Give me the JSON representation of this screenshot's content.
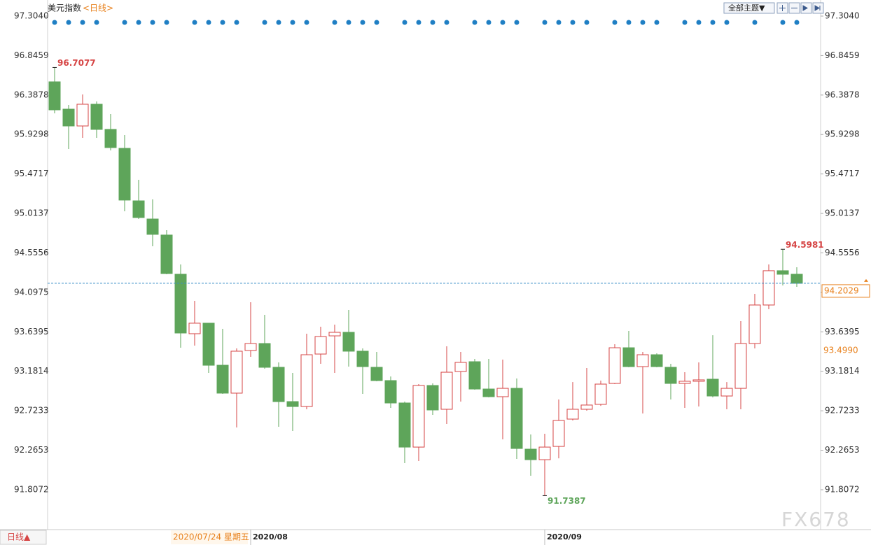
{
  "chart_data": {
    "type": "candlestick",
    "title": "美元指数",
    "subtitle": "<日线>",
    "categories": [
      null,
      null,
      null,
      null,
      null,
      null,
      null,
      null,
      null,
      null,
      null,
      null,
      null,
      null,
      "2020/08",
      null,
      null,
      null,
      null,
      null,
      null,
      null,
      null,
      null,
      null,
      null,
      null,
      null,
      null,
      null,
      null,
      null,
      null,
      null,
      null,
      "2020/09",
      null,
      null,
      null,
      null,
      null,
      null,
      null,
      null,
      null,
      null,
      null,
      null,
      null,
      null,
      null,
      null,
      null,
      null
    ],
    "open": [
      96.541,
      96.224,
      96.029,
      96.281,
      95.989,
      95.769,
      95.16,
      94.949,
      94.763,
      94.308,
      93.618,
      93.74,
      93.252,
      92.928,
      93.423,
      93.504,
      93.228,
      92.83,
      92.773,
      93.382,
      93.593,
      93.634,
      93.415,
      93.228,
      93.074,
      92.814,
      92.302,
      93.017,
      92.741,
      93.179,
      93.293,
      92.976,
      92.887,
      92.984,
      92.278,
      92.156,
      92.31,
      92.627,
      92.741,
      92.798,
      93.041,
      93.455,
      93.236,
      93.374,
      93.228,
      93.041,
      93.066,
      93.09,
      92.895,
      92.984,
      93.504,
      93.951,
      94.349,
      94.308
    ],
    "high": [
      96.7077,
      96.273,
      96.395,
      96.313,
      96.167,
      95.924,
      95.404,
      95.177,
      94.819,
      94.422,
      93.999,
      93.74,
      93.675,
      93.447,
      93.983,
      93.837,
      93.285,
      93.163,
      93.618,
      93.699,
      93.723,
      93.894,
      93.447,
      93.407,
      93.122,
      92.83,
      93.033,
      93.041,
      93.472,
      93.407,
      93.325,
      93.325,
      93.317,
      93.098,
      92.449,
      92.457,
      92.855,
      93.057,
      93.22,
      93.074,
      93.496,
      93.65,
      93.407,
      93.39,
      93.269,
      93.171,
      93.285,
      93.601,
      93.057,
      93.764,
      94.081,
      94.422,
      94.5981,
      94.389
    ],
    "low": [
      96.175,
      95.761,
      95.891,
      95.891,
      95.745,
      95.039,
      94.949,
      94.633,
      94.308,
      93.455,
      93.48,
      93.163,
      92.92,
      92.53,
      93.35,
      93.212,
      92.538,
      92.489,
      92.741,
      93.269,
      93.163,
      93.236,
      92.92,
      93.066,
      92.757,
      92.116,
      92.14,
      92.676,
      92.57,
      92.83,
      92.968,
      92.879,
      92.392,
      92.164,
      91.97,
      91.7387,
      92.172,
      92.611,
      92.725,
      92.781,
      93.033,
      93.228,
      92.692,
      93.228,
      92.855,
      92.757,
      92.773,
      92.879,
      92.741,
      92.741,
      93.447,
      93.902,
      94.178,
      94.162
    ],
    "close": [
      96.216,
      96.029,
      96.281,
      95.989,
      95.778,
      95.169,
      94.966,
      94.771,
      94.316,
      93.626,
      93.74,
      93.252,
      92.928,
      93.415,
      93.504,
      93.228,
      92.83,
      92.773,
      93.374,
      93.585,
      93.634,
      93.415,
      93.236,
      93.074,
      92.814,
      92.302,
      93.017,
      92.733,
      93.171,
      93.285,
      92.976,
      92.887,
      92.984,
      92.286,
      92.156,
      92.302,
      92.611,
      92.741,
      92.79,
      93.033,
      93.455,
      93.236,
      93.374,
      93.236,
      93.041,
      93.066,
      93.082,
      92.895,
      92.984,
      93.504,
      93.951,
      94.349,
      94.308,
      94.2029
    ],
    "up_color": "#d64545",
    "down_color": "#5ea55a",
    "ylim": [
      91.3444,
      97.4907
    ],
    "yticks": [
      {
        "value": 97.304,
        "label": "97.3040"
      },
      96.8459,
      96.3878,
      95.9298,
      95.4717,
      95.0137,
      94.5556,
      94.0975,
      93.6395,
      93.1814,
      92.7233,
      92.2653,
      91.8072
    ],
    "ui": {
      "theme_button": "全部主题▼",
      "period_button": "日线▲",
      "cursor_date": "2020/07/24 星期五",
      "cursor_price": "93.4990",
      "watermark": "FX678"
    }
  }
}
